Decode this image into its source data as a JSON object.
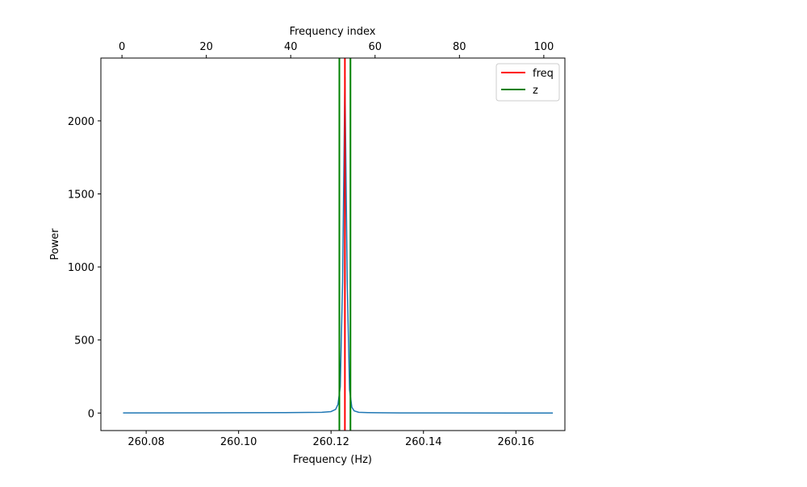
{
  "chart_data": {
    "type": "line",
    "xlabel": "Frequency (Hz)",
    "ylabel": "Power",
    "top_xlabel": "Frequency index",
    "xlim": [
      260.0702,
      260.1706
    ],
    "ylim": [
      -120,
      2430
    ],
    "top_xlim": [
      -5,
      105
    ],
    "x_ticks": [
      260.08,
      260.1,
      260.12,
      260.14,
      260.16
    ],
    "x_tick_labels": [
      "260.08",
      "260.10",
      "260.12",
      "260.14",
      "260.16"
    ],
    "y_ticks": [
      0,
      500,
      1000,
      1500,
      2000
    ],
    "y_tick_labels": [
      "0",
      "500",
      "1000",
      "1500",
      "2000"
    ],
    "top_x_ticks": [
      0,
      20,
      40,
      60,
      80,
      100
    ],
    "top_x_tick_labels": [
      "0",
      "20",
      "40",
      "60",
      "80",
      "100"
    ],
    "grid": false,
    "legend_position": "top-right",
    "series": [
      {
        "name": "",
        "color": "#1f77b4",
        "x": [
          260.075,
          260.1,
          260.11,
          260.115,
          260.118,
          260.12,
          260.121,
          260.1215,
          260.122,
          260.1225,
          260.123,
          260.1235,
          260.124,
          260.1245,
          260.125,
          260.126,
          260.128,
          260.13,
          260.135,
          260.145,
          260.168
        ],
        "y": [
          1,
          2,
          3,
          4,
          5,
          10,
          25,
          60,
          180,
          900,
          2300,
          900,
          160,
          40,
          15,
          5,
          3,
          2,
          1,
          1,
          0
        ]
      }
    ],
    "vlines": [
      {
        "name": "freq",
        "color": "#ff0000",
        "x": 260.123
      },
      {
        "name": "z",
        "color": "#008000",
        "x": 260.1218
      },
      {
        "name": "z",
        "color": "#008000",
        "x": 260.1242
      }
    ],
    "legend": [
      {
        "label": "freq",
        "color": "#ff0000"
      },
      {
        "label": "z",
        "color": "#008000"
      }
    ]
  }
}
